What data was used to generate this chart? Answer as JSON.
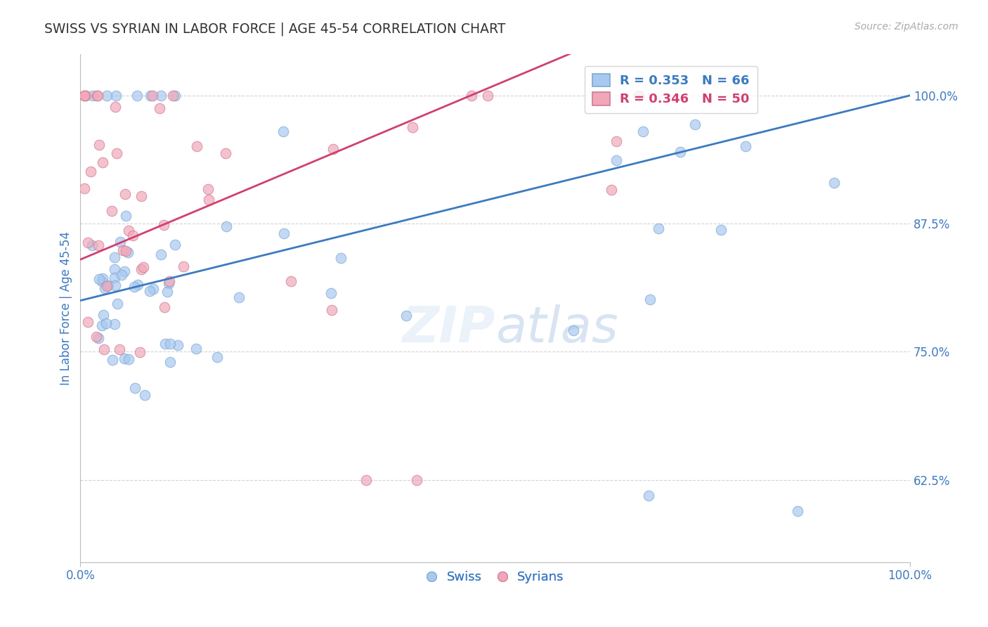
{
  "title": "SWISS VS SYRIAN IN LABOR FORCE | AGE 45-54 CORRELATION CHART",
  "source": "Source: ZipAtlas.com",
  "ylabel": "In Labor Force | Age 45-54",
  "xlim": [
    0.0,
    1.0
  ],
  "ylim": [
    0.545,
    1.04
  ],
  "ytick_labels": [
    "62.5%",
    "75.0%",
    "87.5%",
    "100.0%"
  ],
  "ytick_positions": [
    0.625,
    0.75,
    0.875,
    1.0
  ],
  "gridline_color": "#c8c8c8",
  "swiss_color": "#a8c8f0",
  "syrian_color": "#f0a8b8",
  "swiss_edge_color": "#7aaad0",
  "syrian_edge_color": "#d07898",
  "swiss_line_color": "#3d7abf",
  "syrian_line_color": "#d04070",
  "background_color": "#ffffff",
  "title_color": "#333333",
  "tick_label_color": "#3d7abf",
  "legend_R_swiss": "0.353",
  "legend_N_swiss": "66",
  "legend_R_syrian": "0.346",
  "legend_N_syrian": "50",
  "watermark_zip": "ZIP",
  "watermark_atlas": "atlas"
}
